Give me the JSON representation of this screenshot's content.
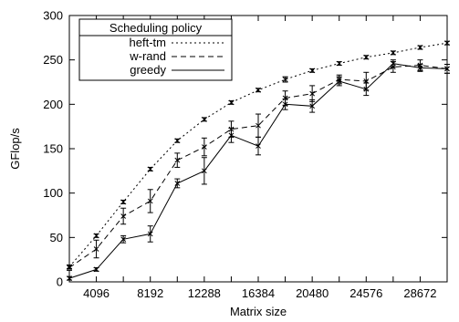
{
  "chart_data": {
    "type": "line",
    "title": "",
    "xlabel": "Matrix size",
    "ylabel": "GFlop/s",
    "xlim": [
      2048,
      30720
    ],
    "ylim": [
      0,
      300
    ],
    "x_ticks": [
      "4096",
      "8192",
      "12288",
      "16384",
      "20480",
      "24576",
      "28672"
    ],
    "y_ticks": [
      "0",
      "50",
      "100",
      "150",
      "200",
      "250",
      "300"
    ],
    "grid": false,
    "legend": {
      "title": "Scheduling policy",
      "position": "top-left"
    },
    "x": [
      2048,
      4096,
      6144,
      8192,
      10240,
      12288,
      14336,
      16384,
      18432,
      20480,
      22528,
      24576,
      26624,
      28672,
      30720
    ],
    "series": [
      {
        "name": "heft-tm",
        "dash": "2,3",
        "values": [
          17,
          52,
          90,
          127,
          159,
          183,
          202,
          216,
          228,
          238,
          246,
          253,
          258,
          264,
          269
        ],
        "errors": [
          2,
          2,
          2,
          2,
          2,
          2,
          2,
          2,
          3,
          2,
          2,
          2,
          2,
          2,
          2
        ]
      },
      {
        "name": "w-rand",
        "dash": "6,4",
        "values": [
          16,
          37,
          74,
          91,
          137,
          152,
          172,
          176,
          207,
          212,
          228,
          226,
          242,
          244,
          240
        ],
        "errors": [
          3,
          10,
          9,
          13,
          8,
          10,
          9,
          13,
          8,
          9,
          5,
          10,
          6,
          6,
          5
        ]
      },
      {
        "name": "greedy",
        "dash": "",
        "values": [
          4,
          14,
          48,
          54,
          111,
          125,
          165,
          153,
          200,
          198,
          226,
          217,
          246,
          241,
          240
        ],
        "errors": [
          2,
          2,
          4,
          9,
          5,
          15,
          8,
          10,
          6,
          7,
          5,
          7,
          4,
          4,
          5
        ]
      }
    ]
  }
}
